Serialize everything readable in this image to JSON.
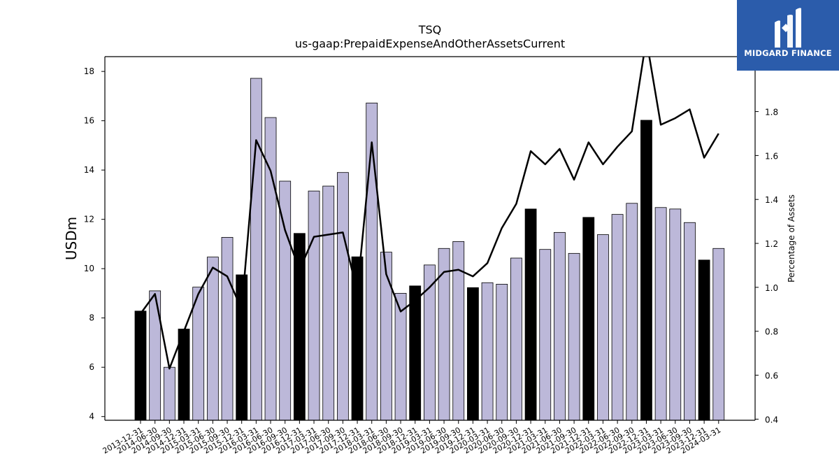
{
  "chart_data": {
    "type": "bar",
    "title": "TSQ",
    "subtitle": "us-gaap:PrepaidExpenseAndOtherAssetsCurrent",
    "ylabel": "USDm",
    "y2label": "Percentage of Assets",
    "ylim": [
      3.85,
      18.6
    ],
    "y2lim": [
      0.395,
      2.05
    ],
    "yticks": [
      4,
      6,
      8,
      10,
      12,
      14,
      16,
      18
    ],
    "y2ticks": [
      0.4,
      0.6,
      0.8,
      1.0,
      1.2,
      1.4,
      1.6,
      1.8
    ],
    "colors": {
      "annual_bar": "#000000",
      "quarter_bar": "#bcb8d9",
      "line": "#000000"
    },
    "categories": [
      "2013-12-31",
      "2014-06-30",
      "2014-09-30",
      "2014-12-31",
      "2015-03-31",
      "2015-06-30",
      "2015-09-30",
      "2015-12-31",
      "2016-03-31",
      "2016-06-30",
      "2016-09-30",
      "2016-12-31",
      "2017-03-31",
      "2017-06-30",
      "2017-09-30",
      "2017-12-31",
      "2018-03-31",
      "2018-06-30",
      "2018-09-30",
      "2018-12-31",
      "2019-03-31",
      "2019-06-30",
      "2019-09-30",
      "2019-12-31",
      "2020-03-31",
      "2020-06-30",
      "2020-09-30",
      "2020-12-31",
      "2021-03-31",
      "2021-06-30",
      "2021-09-30",
      "2021-12-31",
      "2022-03-31",
      "2022-06-30",
      "2022-09-30",
      "2022-12-31",
      "2023-03-31",
      "2023-06-30",
      "2023-09-30",
      "2023-12-31",
      "2024-03-31"
    ],
    "series": [
      {
        "values": [
          8.28,
          9.1,
          6.0,
          7.55,
          9.25,
          10.47,
          11.27,
          9.75,
          17.72,
          16.13,
          13.55,
          11.43,
          13.15,
          13.35,
          13.9,
          10.48,
          16.72,
          10.67,
          9.0,
          9.3,
          10.15,
          10.82,
          11.1,
          9.23,
          9.43,
          9.37,
          10.43,
          12.42,
          10.78,
          11.47,
          10.62,
          12.08,
          11.38,
          12.2,
          12.65,
          16.02,
          12.48,
          12.42,
          11.87,
          10.35,
          10.82
        ],
        "annual": [
          true,
          false,
          false,
          true,
          false,
          false,
          false,
          true,
          false,
          false,
          false,
          true,
          false,
          false,
          false,
          true,
          false,
          false,
          false,
          true,
          false,
          false,
          false,
          true,
          false,
          false,
          false,
          true,
          false,
          false,
          false,
          true,
          false,
          false,
          false,
          true,
          false,
          false,
          false,
          true,
          false
        ]
      },
      {
        "type": "line",
        "axis": "right",
        "values": [
          0.88,
          0.97,
          0.63,
          0.8,
          0.97,
          1.09,
          1.05,
          0.9,
          1.67,
          1.53,
          1.26,
          1.08,
          1.23,
          1.24,
          1.25,
          0.98,
          1.66,
          1.06,
          0.89,
          0.94,
          1.0,
          1.07,
          1.08,
          1.05,
          1.11,
          1.27,
          1.38,
          1.62,
          1.56,
          1.63,
          1.49,
          1.66,
          1.56,
          1.64,
          1.71,
          2.13,
          1.74,
          1.77,
          1.81,
          1.59,
          1.7
        ]
      }
    ]
  },
  "logo": {
    "text": "MIDGARD FINANCE"
  }
}
